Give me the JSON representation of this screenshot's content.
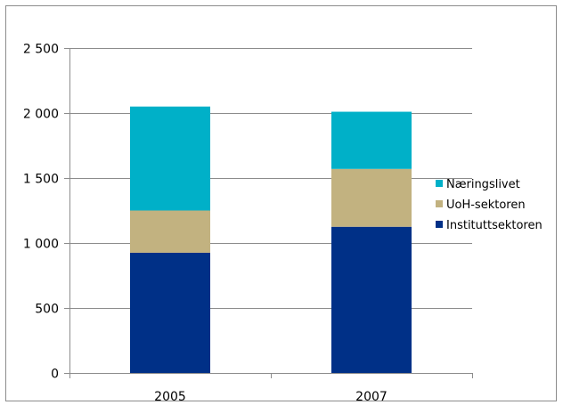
{
  "chart_data": {
    "type": "bar",
    "stacked": true,
    "categories": [
      "2005",
      "2007"
    ],
    "series": [
      {
        "name": "Instituttsektoren",
        "color": "#003087",
        "values": [
          925,
          1125
        ]
      },
      {
        "name": "UoH-sektoren",
        "color": "#c2b280",
        "values": [
          325,
          445
        ]
      },
      {
        "name": "Næringslivet",
        "color": "#00b0c8",
        "values": [
          800,
          440
        ]
      }
    ],
    "yticks": [
      0,
      500,
      1000,
      1500,
      2000,
      2500
    ],
    "ytick_labels": [
      "0",
      "500",
      "1 000",
      "1 500",
      "2 000",
      "2 500"
    ],
    "ylim": [
      0,
      2500
    ],
    "grid": true,
    "legend": {
      "placement": "right",
      "entries": [
        "Næringslivet",
        "UoH-sektoren",
        "Instituttsektoren"
      ]
    },
    "title": "",
    "xlabel": "",
    "ylabel": ""
  }
}
